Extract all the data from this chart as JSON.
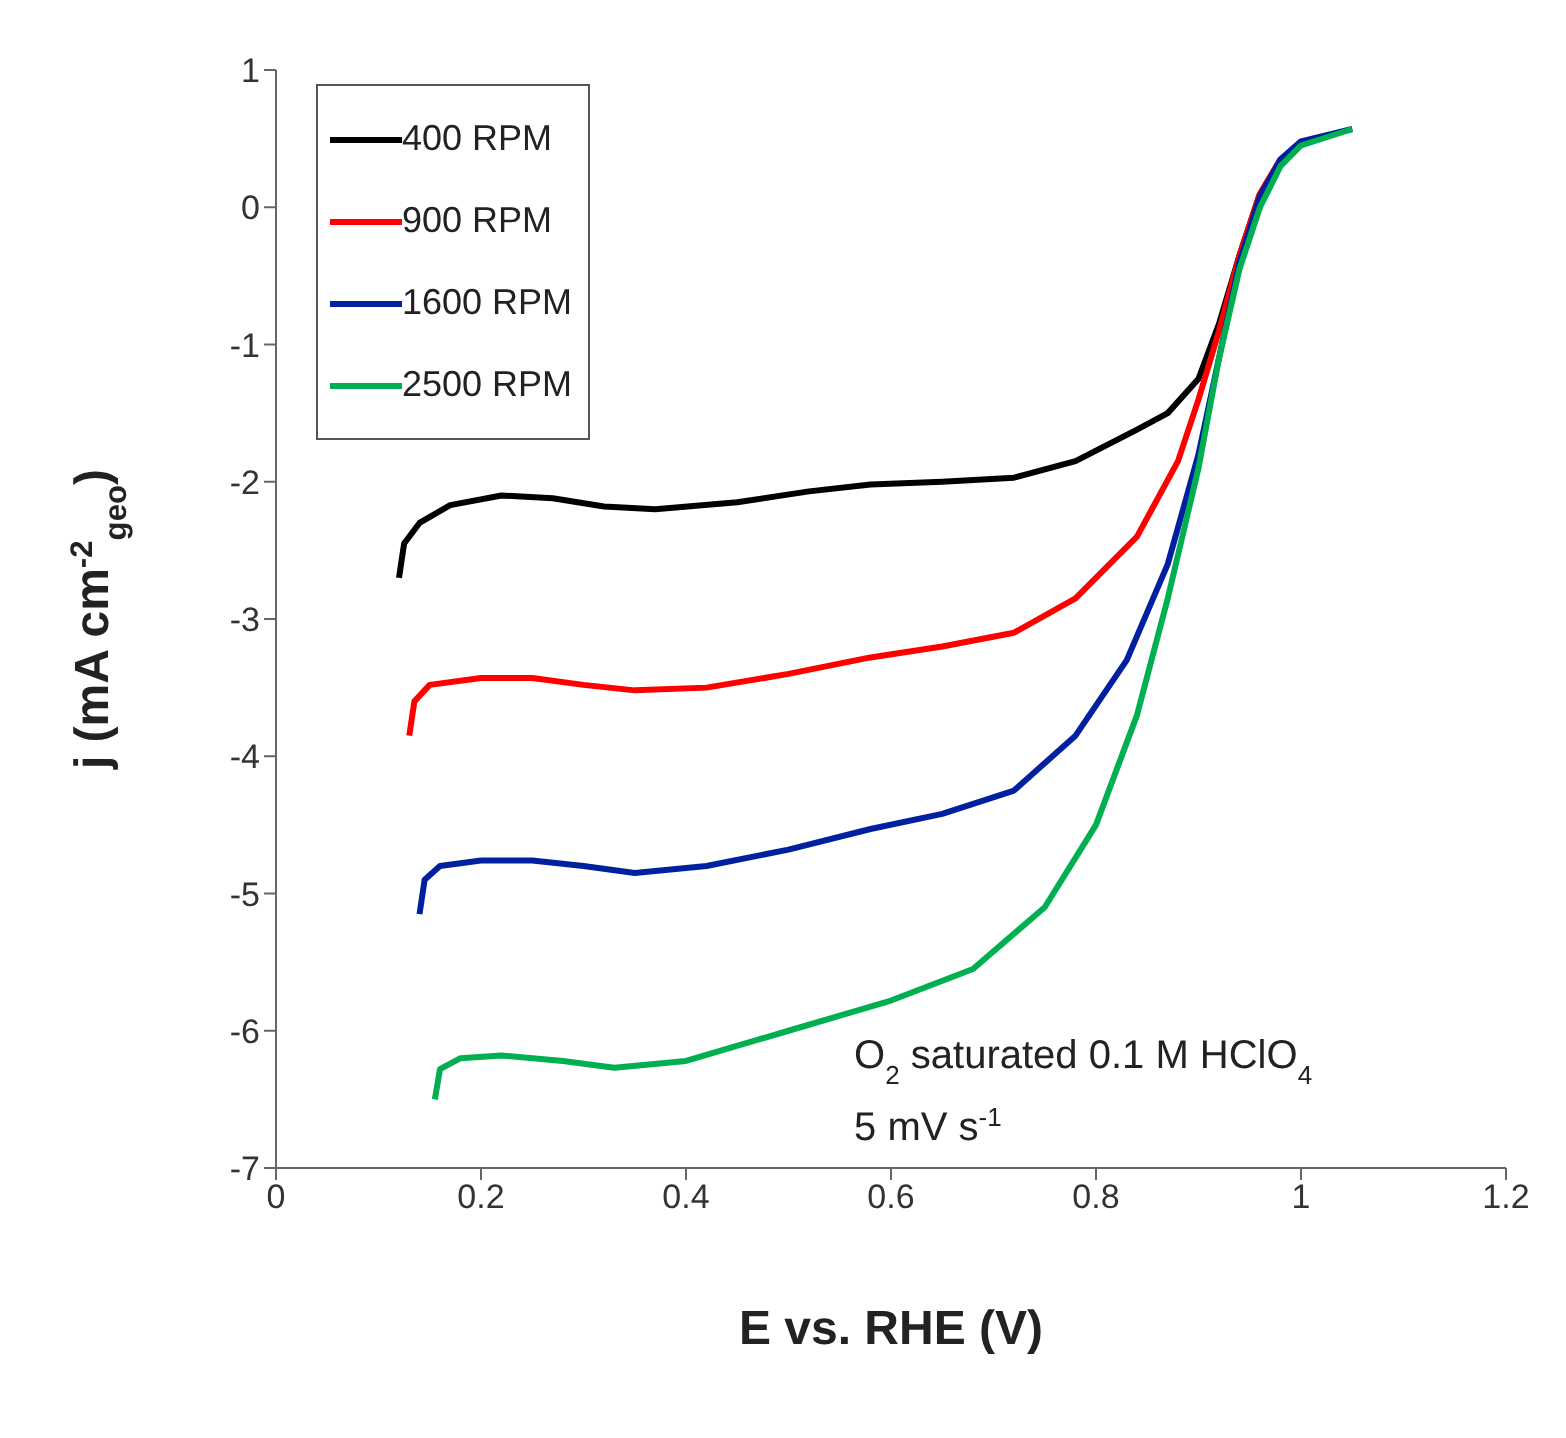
{
  "chart_data": {
    "type": "line",
    "xlabel": "E vs. RHE (V)",
    "ylabel": "j (mA cm$^{-2}$$_{geo}$)",
    "xlim": [
      0,
      1.2
    ],
    "xticks": [
      0,
      0.2,
      0.4,
      0.6,
      0.8,
      1,
      1.2
    ],
    "ylim": [
      -7,
      1
    ],
    "yticks": [
      -7,
      -6,
      -5,
      -4,
      -3,
      -2,
      -1,
      0,
      1
    ],
    "grid": false,
    "legend": "top left",
    "line_style": "solid",
    "annotations": [
      "O$_{2}$ saturated 0.1 M HClO$_{4}$",
      "5 mV s$^{-1}$"
    ],
    "series": [
      {
        "name": "400 RPM",
        "color": "#000000",
        "x": [
          0.12,
          0.125,
          0.14,
          0.17,
          0.22,
          0.27,
          0.32,
          0.37,
          0.45,
          0.52,
          0.58,
          0.65,
          0.72,
          0.78,
          0.84,
          0.87,
          0.9,
          0.92,
          0.94,
          0.96
        ],
        "values": [
          -2.7,
          -2.45,
          -2.3,
          -2.17,
          -2.1,
          -2.12,
          -2.18,
          -2.2,
          -2.15,
          -2.07,
          -2.02,
          -2.0,
          -1.97,
          -1.85,
          -1.62,
          -1.5,
          -1.25,
          -0.85,
          -0.35,
          0.1
        ]
      },
      {
        "name": "900 RPM",
        "color": "#ff0000",
        "x": [
          0.13,
          0.135,
          0.15,
          0.2,
          0.25,
          0.3,
          0.35,
          0.42,
          0.5,
          0.58,
          0.65,
          0.72,
          0.78,
          0.84,
          0.88,
          0.9,
          0.92,
          0.94,
          0.96,
          0.98
        ],
        "values": [
          -3.85,
          -3.6,
          -3.48,
          -3.43,
          -3.43,
          -3.48,
          -3.52,
          -3.5,
          -3.4,
          -3.28,
          -3.2,
          -3.1,
          -2.85,
          -2.4,
          -1.85,
          -1.4,
          -0.9,
          -0.35,
          0.1,
          0.35
        ]
      },
      {
        "name": "1600 RPM",
        "color": "#00209f",
        "x": [
          0.14,
          0.145,
          0.16,
          0.2,
          0.25,
          0.3,
          0.35,
          0.42,
          0.5,
          0.58,
          0.65,
          0.72,
          0.78,
          0.83,
          0.87,
          0.9,
          0.92,
          0.94,
          0.96,
          0.98,
          1.0,
          1.05
        ],
        "values": [
          -5.15,
          -4.9,
          -4.8,
          -4.76,
          -4.76,
          -4.8,
          -4.85,
          -4.8,
          -4.68,
          -4.53,
          -4.42,
          -4.25,
          -3.85,
          -3.3,
          -2.6,
          -1.8,
          -1.1,
          -0.4,
          0.08,
          0.35,
          0.48,
          0.57
        ]
      },
      {
        "name": "2500 RPM",
        "color": "#00b050",
        "x": [
          0.155,
          0.16,
          0.18,
          0.22,
          0.28,
          0.33,
          0.4,
          0.5,
          0.6,
          0.68,
          0.75,
          0.8,
          0.84,
          0.87,
          0.9,
          0.92,
          0.94,
          0.96,
          0.98,
          1.0,
          1.05
        ],
        "values": [
          -6.5,
          -6.28,
          -6.2,
          -6.18,
          -6.22,
          -6.27,
          -6.22,
          -6.0,
          -5.78,
          -5.55,
          -5.1,
          -4.5,
          -3.7,
          -2.85,
          -1.9,
          -1.1,
          -0.45,
          0.0,
          0.3,
          0.45,
          0.57
        ]
      }
    ]
  }
}
